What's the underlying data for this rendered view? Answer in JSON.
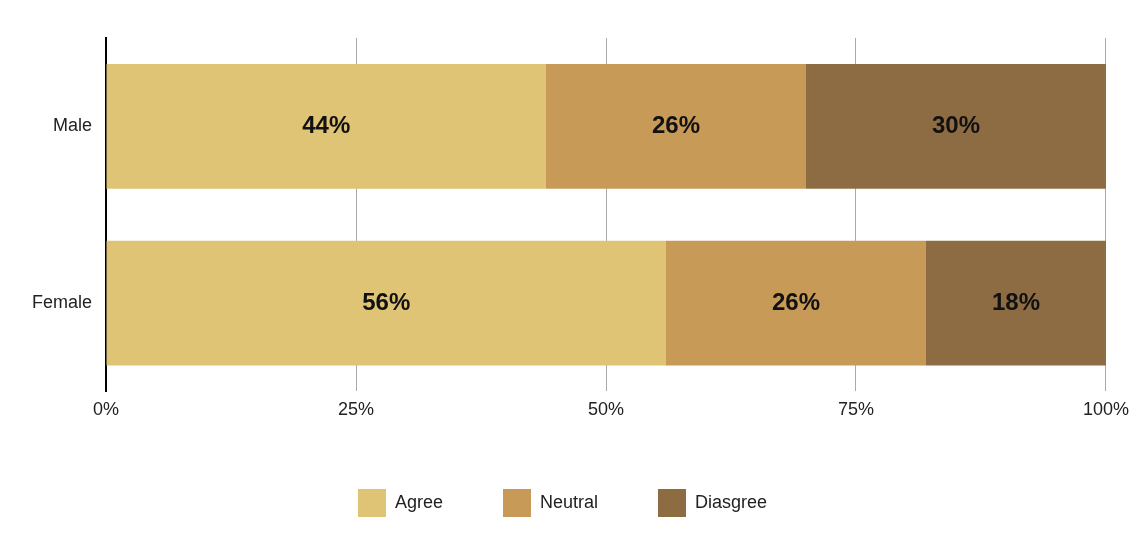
{
  "chart_data": {
    "type": "bar",
    "orientation": "horizontal",
    "stacked": true,
    "categories": [
      "Male",
      "Female"
    ],
    "series": [
      {
        "name": "Agree",
        "color": "#dfc476",
        "values": [
          44,
          56
        ],
        "value_labels": [
          "44%",
          "56%"
        ]
      },
      {
        "name": "Neutral",
        "color": "#c89a58",
        "values": [
          26,
          26
        ],
        "value_labels": [
          "26%",
          "26%"
        ]
      },
      {
        "name": "Diasgree",
        "color": "#8d6c43",
        "values": [
          30,
          18
        ],
        "value_labels": [
          "30%",
          "18%"
        ]
      }
    ],
    "xlim": [
      0,
      100
    ],
    "xticks": [
      {
        "value": 0,
        "label": "0%"
      },
      {
        "value": 25,
        "label": "25%"
      },
      {
        "value": 50,
        "label": "50%"
      },
      {
        "value": 75,
        "label": "75%"
      },
      {
        "value": 100,
        "label": "100%"
      }
    ],
    "grid": "x",
    "legend": "bottom"
  }
}
